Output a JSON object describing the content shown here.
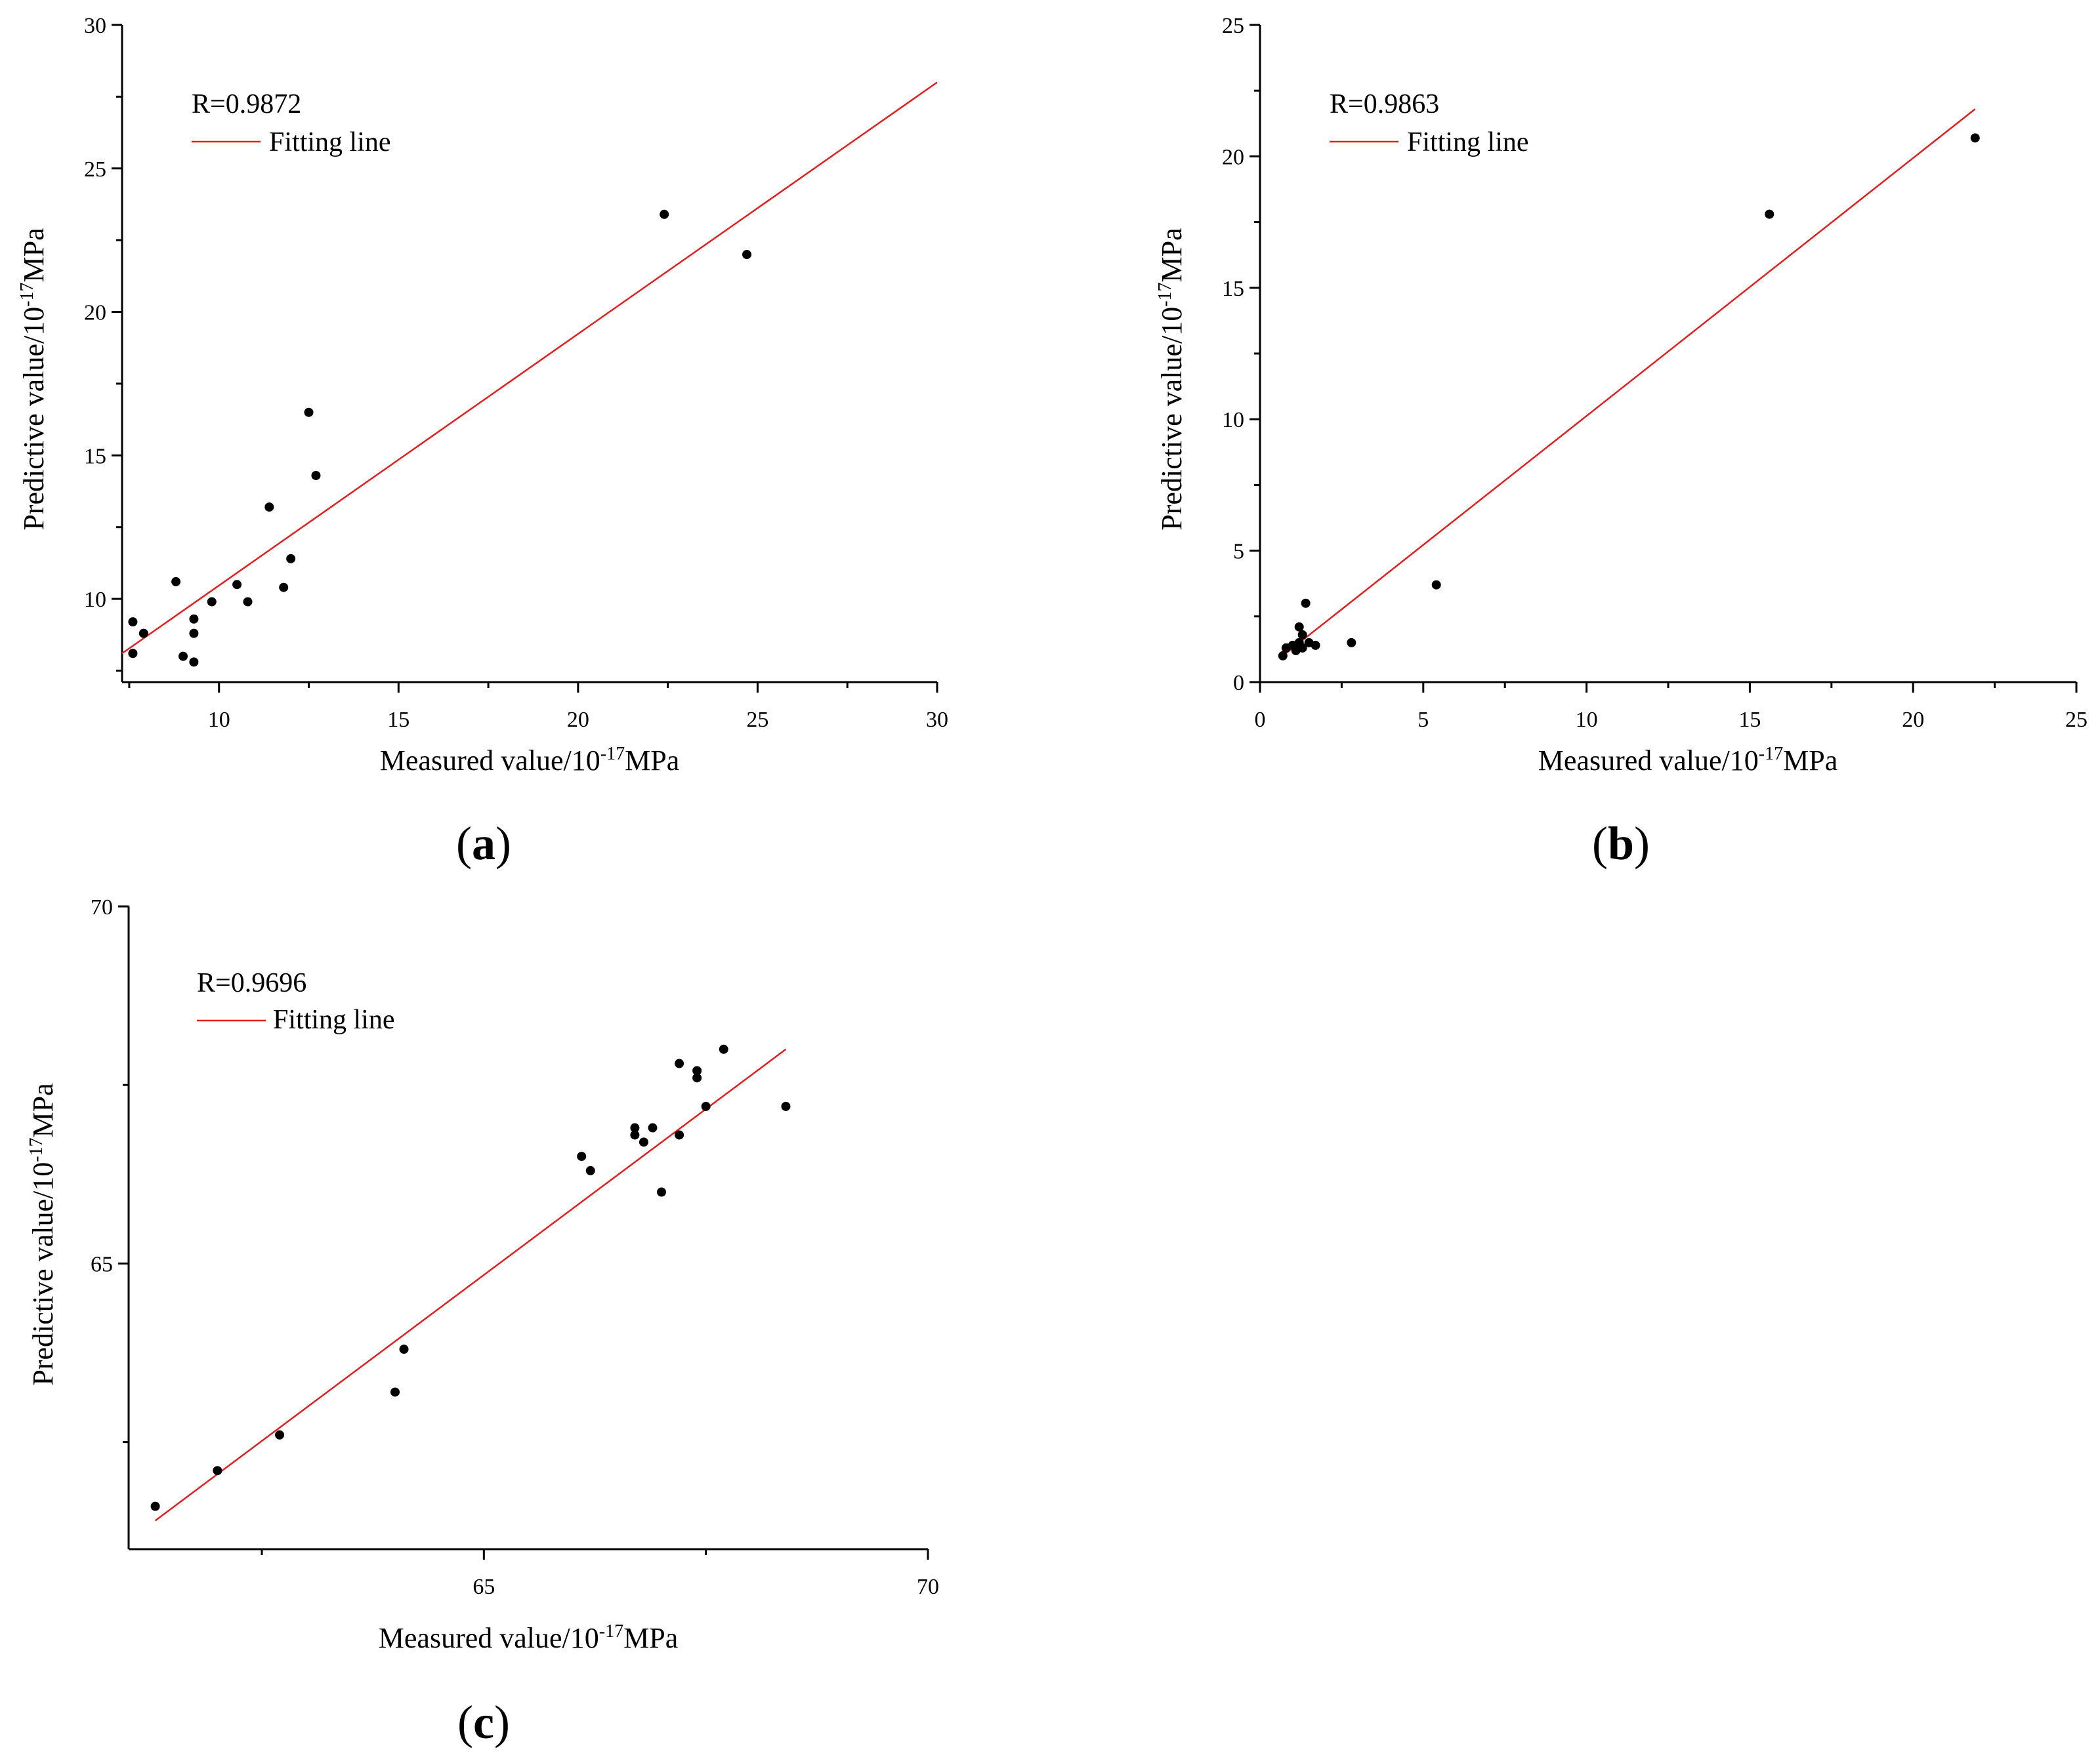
{
  "chart_data": [
    {
      "type": "scatter",
      "panel_label": "a",
      "annotation": "R=0.9872",
      "legend": [
        "Fitting line"
      ],
      "xlabel": "Measured value/10",
      "xlabel_sup": "-17",
      "xlabel_tail": "MPa",
      "ylabel": "Predictive value/10",
      "ylabel_sup": "-17",
      "ylabel_tail": "MPa",
      "xlim": [
        7.3,
        30
      ],
      "ylim": [
        7.1,
        30
      ],
      "xticks": [
        10,
        15,
        20,
        25,
        30
      ],
      "yticks": [
        10,
        15,
        20,
        25,
        30
      ],
      "fit_line": {
        "x": [
          7.3,
          30
        ],
        "y": [
          8.1,
          28
        ]
      },
      "points": {
        "x": [
          7.6,
          7.6,
          7.9,
          8.8,
          9.0,
          9.3,
          9.3,
          9.3,
          9.8,
          10.5,
          10.8,
          11.4,
          11.8,
          12.0,
          12.5,
          12.7,
          22.4,
          24.7
        ],
        "y": [
          9.2,
          8.1,
          8.8,
          10.6,
          8.0,
          9.3,
          8.8,
          7.8,
          9.9,
          10.5,
          9.9,
          13.2,
          10.4,
          11.4,
          16.5,
          14.3,
          23.4,
          22.0
        ]
      }
    },
    {
      "type": "scatter",
      "panel_label": "b",
      "annotation": "R=0.9863",
      "legend": [
        "Fitting line"
      ],
      "xlabel": "Measured value/10",
      "xlabel_sup": "-17",
      "xlabel_tail": "MPa",
      "ylabel": "Predictive value/10",
      "ylabel_sup": "-17",
      "ylabel_tail": "MPa",
      "xlim": [
        0,
        25
      ],
      "ylim": [
        0,
        25
      ],
      "xticks": [
        0,
        5,
        10,
        15,
        20,
        25
      ],
      "yticks": [
        0,
        5,
        10,
        15,
        20,
        25
      ],
      "fit_line": {
        "x": [
          0.8,
          21.9
        ],
        "y": [
          1.1,
          21.8
        ]
      },
      "points": {
        "x": [
          0.7,
          0.8,
          1.0,
          1.1,
          1.2,
          1.2,
          1.3,
          1.3,
          1.4,
          1.5,
          1.7,
          2.8,
          5.4,
          15.6,
          21.9
        ],
        "y": [
          1.0,
          1.3,
          1.4,
          1.2,
          1.5,
          2.1,
          1.8,
          1.3,
          3.0,
          1.5,
          1.4,
          1.5,
          3.7,
          17.8,
          20.7
        ]
      }
    },
    {
      "type": "scatter",
      "panel_label": "c",
      "annotation": "R=0.9696",
      "legend": [
        "Fitting line"
      ],
      "xlabel": "Measured value/10",
      "xlabel_sup": "-17",
      "xlabel_tail": "MPa",
      "ylabel": "Predictive value/10",
      "ylabel_sup": "-17",
      "ylabel_tail": "MPa",
      "xlim": [
        61.0,
        70
      ],
      "ylim": [
        61.0,
        70
      ],
      "xticks": [
        65,
        70
      ],
      "yticks": [
        65,
        70
      ],
      "minor_xticks": [
        62.5,
        67.5
      ],
      "minor_yticks": [
        62.5,
        67.5
      ],
      "fit_line": {
        "x": [
          61.3,
          68.4
        ],
        "y": [
          61.4,
          68.0
        ]
      },
      "points": {
        "x": [
          61.3,
          62.0,
          62.7,
          64.0,
          64.1,
          66.1,
          66.2,
          66.7,
          66.7,
          66.8,
          66.9,
          67.0,
          67.2,
          67.2,
          67.4,
          67.4,
          67.5,
          67.7,
          68.4
        ],
        "y": [
          61.6,
          62.1,
          62.6,
          63.2,
          63.8,
          66.5,
          66.3,
          66.8,
          66.9,
          66.7,
          66.9,
          66.0,
          66.8,
          67.8,
          67.7,
          67.6,
          67.2,
          68.0,
          67.2
        ]
      }
    }
  ]
}
